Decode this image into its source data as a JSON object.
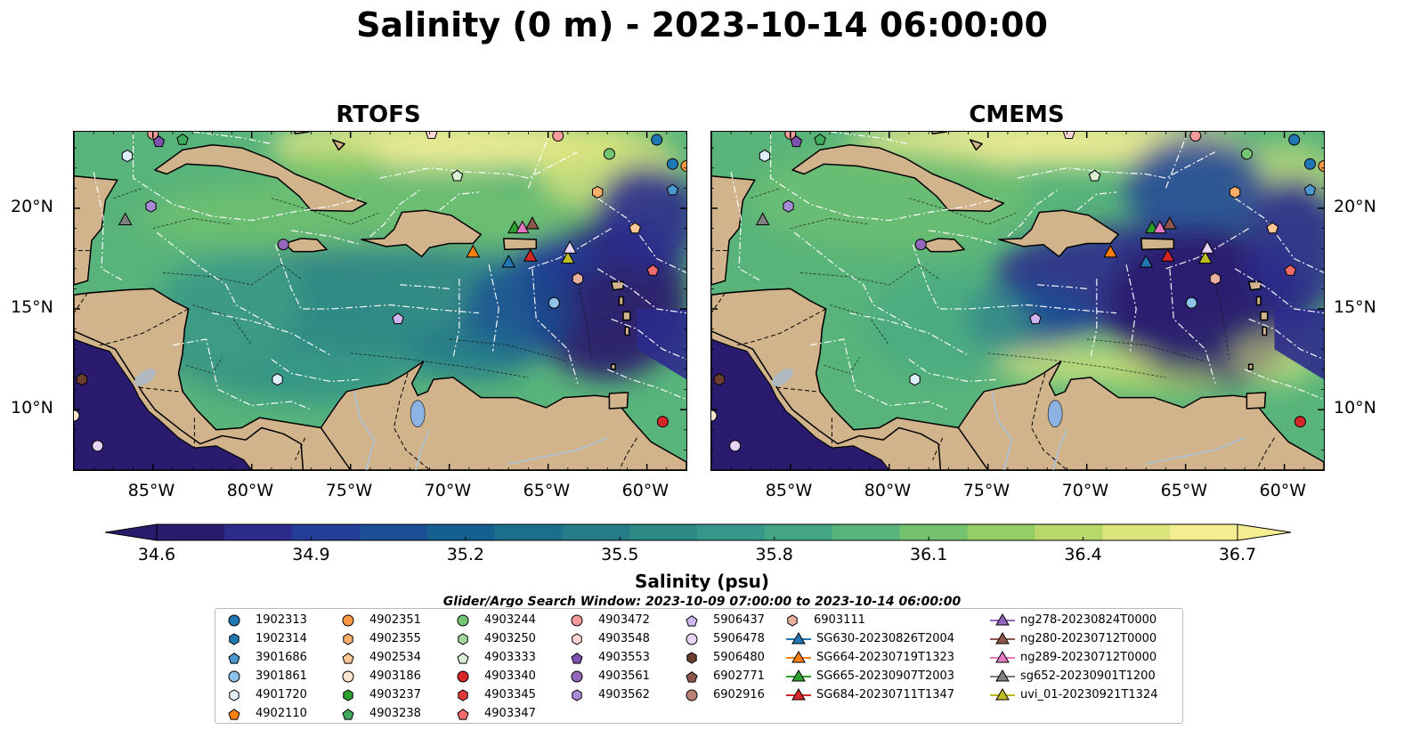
{
  "title": "Salinity (0 m) - 2023-10-14 06:00:00",
  "panels": [
    {
      "title": "RTOFS"
    },
    {
      "title": "CMEMS"
    }
  ],
  "axes": {
    "lon_ticks": [
      "85°W",
      "80°W",
      "75°W",
      "70°W",
      "65°W",
      "60°W"
    ],
    "lat_ticks": [
      "20°N",
      "15°N",
      "10°N"
    ],
    "lon_range": [
      -89.0,
      -58.0
    ],
    "lat_range": [
      7.0,
      23.8
    ]
  },
  "colorbar": {
    "label": "Salinity (psu)",
    "ticks": [
      "34.6",
      "34.9",
      "35.2",
      "35.5",
      "35.8",
      "36.1",
      "36.4",
      "36.7"
    ],
    "range": [
      34.6,
      36.7
    ],
    "colors": [
      "#2a1b6e",
      "#2c2b8c",
      "#233d98",
      "#1a4e95",
      "#155f91",
      "#1b6f8d",
      "#257c89",
      "#2d8a86",
      "#36988a",
      "#44a586",
      "#58b47a",
      "#74c26e",
      "#95cd67",
      "#b8d96a",
      "#dbe57c",
      "#f6ee93"
    ],
    "extend": "both"
  },
  "search_window": "Glider/Argo Search Window: 2023-10-09 07:00:00 to 2023-10-14 06:00:00",
  "legend": [
    {
      "label": "1902313",
      "marker": "circle",
      "color": "#1f77b4"
    },
    {
      "label": "1902314",
      "marker": "hexagon",
      "color": "#1f77b4"
    },
    {
      "label": "3901686",
      "marker": "pentagon",
      "color": "#4a98d0"
    },
    {
      "label": "3901861",
      "marker": "circle",
      "color": "#8ec2ea"
    },
    {
      "label": "4901720",
      "marker": "hexagon",
      "color": "#deeefb"
    },
    {
      "label": "4902110",
      "marker": "pentagon",
      "color": "#ff7f0e"
    },
    {
      "label": "4902351",
      "marker": "circle",
      "color": "#fd9a45"
    },
    {
      "label": "4902355",
      "marker": "hexagon",
      "color": "#fdae6b"
    },
    {
      "label": "4902534",
      "marker": "pentagon",
      "color": "#fdc894"
    },
    {
      "label": "4903186",
      "marker": "circle",
      "color": "#fee6ce"
    },
    {
      "label": "4903237",
      "marker": "hexagon",
      "color": "#2ca02c"
    },
    {
      "label": "4903238",
      "marker": "pentagon",
      "color": "#41ab5d"
    },
    {
      "label": "4903244",
      "marker": "circle",
      "color": "#74c476"
    },
    {
      "label": "4903250",
      "marker": "hexagon",
      "color": "#a1d99b"
    },
    {
      "label": "4903333",
      "marker": "pentagon",
      "color": "#d9f0d3"
    },
    {
      "label": "4903340",
      "marker": "circle",
      "color": "#d62728"
    },
    {
      "label": "4903345",
      "marker": "hexagon",
      "color": "#e0393b"
    },
    {
      "label": "4903347",
      "marker": "pentagon",
      "color": "#ef6a6a"
    },
    {
      "label": "4903472",
      "marker": "circle",
      "color": "#f39a9a"
    },
    {
      "label": "4903548",
      "marker": "hexagon",
      "color": "#fcd4d4"
    },
    {
      "label": "4903553",
      "marker": "pentagon",
      "color": "#7b52ae"
    },
    {
      "label": "4903561",
      "marker": "circle",
      "color": "#9467bd"
    },
    {
      "label": "4903562",
      "marker": "hexagon",
      "color": "#a88bd6"
    },
    {
      "label": "5906437",
      "marker": "pentagon",
      "color": "#cfb5f0"
    },
    {
      "label": "5906478",
      "marker": "circle",
      "color": "#e7d4f7"
    },
    {
      "label": "5906480",
      "marker": "hexagon",
      "color": "#6b3d2e"
    },
    {
      "label": "6902771",
      "marker": "pentagon",
      "color": "#8c564b"
    },
    {
      "label": "6902916",
      "marker": "circle",
      "color": "#b98373"
    },
    {
      "label": "6903111",
      "marker": "hexagon",
      "color": "#e8b09f"
    },
    {
      "label": "SG630-20230826T2004",
      "marker": "triangle-line",
      "color": "#1f77b4"
    },
    {
      "label": "SG664-20230719T1323",
      "marker": "triangle-line",
      "color": "#ff7f0e"
    },
    {
      "label": "SG665-20230907T2003",
      "marker": "triangle-line",
      "color": "#2ca02c"
    },
    {
      "label": "SG684-20230711T1347",
      "marker": "triangle-line",
      "color": "#d62728"
    },
    {
      "label": "ng278-20230824T0000",
      "marker": "triangle-line",
      "color": "#9467bd"
    },
    {
      "label": "ng280-20230712T0000",
      "marker": "triangle-line",
      "color": "#8c564b"
    },
    {
      "label": "ng289-20230712T0000",
      "marker": "triangle-line",
      "color": "#e377c2"
    },
    {
      "label": "sg652-20230901T1200",
      "marker": "triangle-line",
      "color": "#7f7f7f"
    },
    {
      "label": "uvi_01-20230921T1324",
      "marker": "triangle-line",
      "color": "#bcbd22"
    }
  ],
  "colors": {
    "land": "#d2b48c",
    "lake": "#8db3e2",
    "river": "#a8c4e0"
  }
}
